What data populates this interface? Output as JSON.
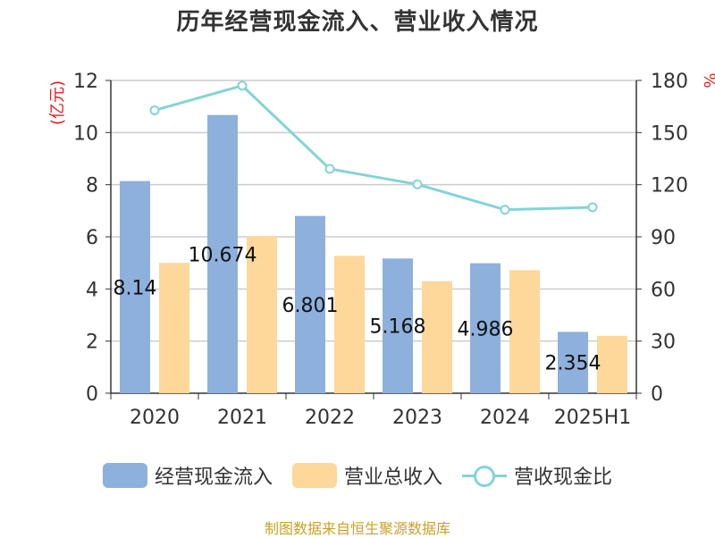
{
  "chart_data": {
    "type": "bar",
    "title": "历年经营现金流入、营业收入情况",
    "categories": [
      "2020",
      "2021",
      "2022",
      "2023",
      "2024",
      "2025H1"
    ],
    "ylabel": "(亿元)",
    "ylabel_right": "%",
    "ylim": [
      0,
      12
    ],
    "ylim_right": [
      0,
      180
    ],
    "yticks": [
      "0",
      "2",
      "4",
      "6",
      "8",
      "10",
      "12"
    ],
    "yticks_right": [
      "0",
      "30",
      "60",
      "90",
      "120",
      "150",
      "180"
    ],
    "grid": true,
    "legend_position": "bottom",
    "series": [
      {
        "name": "经营现金流入",
        "type": "bar",
        "axis": "left",
        "color": "#8eb0dc",
        "values": [
          8.14,
          10.674,
          6.801,
          5.168,
          4.986,
          2.354
        ],
        "labels": [
          "8.14",
          "10.674",
          "6.801",
          "5.168",
          "4.986",
          "2.354"
        ]
      },
      {
        "name": "营业总收入",
        "type": "bar",
        "axis": "left",
        "color": "#fdd89a",
        "values": [
          5.0,
          6.03,
          5.27,
          4.3,
          4.72,
          2.2
        ]
      },
      {
        "name": "营收现金比",
        "type": "line",
        "axis": "right",
        "color": "#84d3d6",
        "values": [
          162.8,
          177.0,
          129.1,
          120.2,
          105.6,
          107.0
        ]
      }
    ]
  },
  "source_text": "制图数据来自恒生聚源数据库",
  "colors": {
    "axis_label": "#e02020",
    "grid": "#cccccc",
    "axis": "#333333"
  }
}
